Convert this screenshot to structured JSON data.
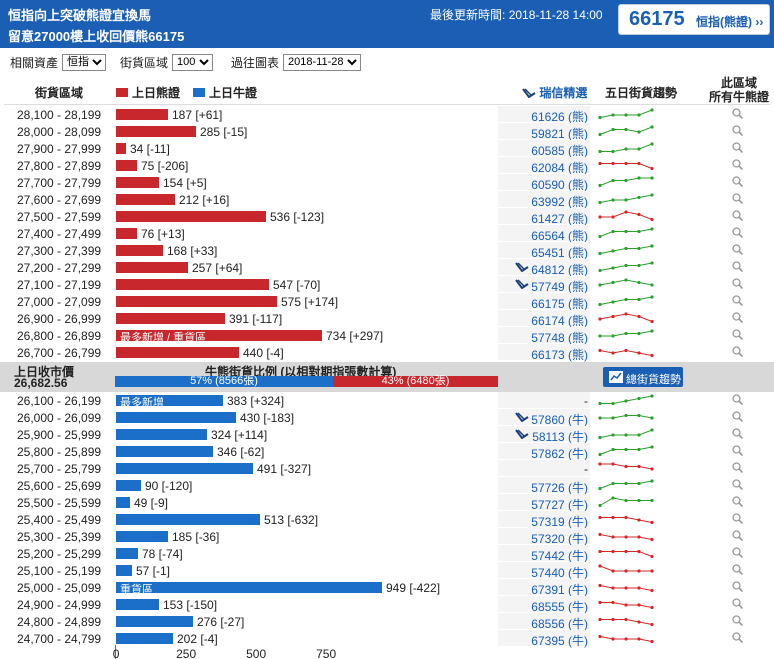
{
  "header": {
    "title_line1": "恒指向上突破熊證宜換馬",
    "title_line2": "留意27000樓上收回價熊66175",
    "updated_label": "最後更新時間:",
    "updated_time": "2018-11-28 14:00",
    "index_value": "66175",
    "index_name": "恒指(熊證) ››"
  },
  "controls": {
    "asset_label": "相關資產",
    "asset_value": "恒指",
    "range_label": "街貨區域",
    "range_value": "100",
    "date_label": "過往圖表",
    "date_value": "2018-11-28"
  },
  "columns": {
    "zone": "街貨區域",
    "bear_legend": "上日熊證",
    "bull_legend": "上日牛證",
    "ubs_pick": "瑞信精選",
    "trend": "五日街貨趨勢",
    "all_line1": "此區域",
    "all_line2": "所有牛熊證"
  },
  "colors": {
    "bear": "#c8282d",
    "bull": "#1b6fc9",
    "header_bg": "#1b5fb4",
    "trend_up": "#2ca02c",
    "trend_down": "#d62728"
  },
  "bear_rows": [
    {
      "range": "28,100 - 28,199",
      "value": 187,
      "label": "187 [+61]",
      "code": "61626 (熊)",
      "ubs": false,
      "trend": [
        1,
        2,
        2,
        2,
        4
      ],
      "inline": ""
    },
    {
      "range": "28,000 - 28,099",
      "value": 285,
      "label": "285 [-15]",
      "code": "59821 (熊)",
      "ubs": false,
      "trend": [
        1,
        3,
        3,
        2,
        4
      ],
      "inline": ""
    },
    {
      "range": "27,900 - 27,999",
      "value": 34,
      "label": "34 [-11]",
      "code": "60585 (熊)",
      "ubs": false,
      "trend": [
        1,
        1,
        2,
        2,
        4
      ],
      "inline": ""
    },
    {
      "range": "27,800 - 27,899",
      "value": 75,
      "label": "75 [-206]",
      "code": "62084 (熊)",
      "ubs": false,
      "trend": [
        3,
        3,
        3,
        3,
        1
      ],
      "inline": ""
    },
    {
      "range": "27,700 - 27,799",
      "value": 154,
      "label": "154 [+5]",
      "code": "60590 (熊)",
      "ubs": false,
      "trend": [
        1,
        3,
        3,
        4,
        4
      ],
      "inline": ""
    },
    {
      "range": "27,600 - 27,699",
      "value": 212,
      "label": "212 [+16]",
      "code": "63992 (熊)",
      "ubs": false,
      "trend": [
        1,
        2,
        2,
        3,
        4
      ],
      "inline": ""
    },
    {
      "range": "27,500 - 27,599",
      "value": 536,
      "label": "536 [-123]",
      "code": "61427 (熊)",
      "ubs": false,
      "trend": [
        2,
        2,
        4,
        3,
        1
      ],
      "inline": ""
    },
    {
      "range": "27,400 - 27,499",
      "value": 76,
      "label": "76 [+13]",
      "code": "66564 (熊)",
      "ubs": false,
      "trend": [
        1,
        3,
        3,
        3,
        4
      ],
      "inline": ""
    },
    {
      "range": "27,300 - 27,399",
      "value": 168,
      "label": "168 [+33]",
      "code": "65451 (熊)",
      "ubs": false,
      "trend": [
        1,
        2,
        3,
        3,
        4
      ],
      "inline": ""
    },
    {
      "range": "27,200 - 27,299",
      "value": 257,
      "label": "257 [+64]",
      "code": "64812 (熊)",
      "ubs": true,
      "trend": [
        1,
        2,
        3,
        3,
        4
      ],
      "inline": ""
    },
    {
      "range": "27,100 - 27,199",
      "value": 547,
      "label": "547 [-70]",
      "code": "57749 (熊)",
      "ubs": true,
      "trend": [
        2,
        3,
        4,
        3,
        2
      ],
      "inline": ""
    },
    {
      "range": "27,000 - 27,099",
      "value": 575,
      "label": "575 [+174]",
      "code": "66175 (熊)",
      "ubs": false,
      "trend": [
        1,
        2,
        3,
        3,
        4
      ],
      "inline": ""
    },
    {
      "range": "26,900 - 26,999",
      "value": 391,
      "label": "391 [-117]",
      "code": "66174 (熊)",
      "ubs": false,
      "trend": [
        2,
        3,
        4,
        3,
        1
      ],
      "inline": ""
    },
    {
      "range": "26,800 - 26,899",
      "value": 734,
      "label": "734 [+297]",
      "code": "57748 (熊)",
      "ubs": false,
      "trend": [
        2,
        2,
        3,
        3,
        4
      ],
      "inline": "最多新增 / 重貨區"
    },
    {
      "range": "26,700 - 26,799",
      "value": 440,
      "label": "440 [-4]",
      "code": "66173 (熊)",
      "ubs": false,
      "trend": [
        3,
        2,
        3,
        2,
        1
      ],
      "inline": ""
    }
  ],
  "middle": {
    "prev_close_label": "上日收市價",
    "prev_close_value": "26,682.56",
    "ratio_title": "牛熊街貨比例 (以相對期指張數計算)",
    "bull_ratio_text": "57% (8566張)",
    "bear_ratio_text": "43% (6480張)",
    "bull_ratio": 0.57,
    "bear_ratio": 0.43,
    "button_label": "總街貨趨勢"
  },
  "bull_rows": [
    {
      "range": "26,100 - 26,199",
      "value": 383,
      "label": "383 [+324]",
      "code": "-",
      "ubs": false,
      "trend": [
        1,
        1,
        2,
        3,
        4
      ],
      "inline": "最多新增"
    },
    {
      "range": "26,000 - 26,099",
      "value": 430,
      "label": "430 [-183]",
      "code": "57860 (牛)",
      "ubs": true,
      "trend": [
        2,
        2,
        3,
        3,
        2
      ],
      "inline": ""
    },
    {
      "range": "25,900 - 25,999",
      "value": 324,
      "label": "324 [+114]",
      "code": "58113 (牛)",
      "ubs": true,
      "trend": [
        1,
        2,
        2,
        2,
        4
      ],
      "inline": ""
    },
    {
      "range": "25,800 - 25,899",
      "value": 346,
      "label": "346 [-62]",
      "code": "57862 (牛)",
      "ubs": false,
      "trend": [
        1,
        3,
        3,
        3,
        4
      ],
      "inline": ""
    },
    {
      "range": "25,700 - 25,799",
      "value": 491,
      "label": "491 [-327]",
      "code": "-",
      "ubs": false,
      "trend": [
        4,
        4,
        3,
        3,
        2
      ],
      "inline": ""
    },
    {
      "range": "25,600 - 25,699",
      "value": 90,
      "label": "90 [-120]",
      "code": "57726 (牛)",
      "ubs": false,
      "trend": [
        1,
        3,
        3,
        3,
        4
      ],
      "inline": ""
    },
    {
      "range": "25,500 - 25,599",
      "value": 49,
      "label": "49 [-9]",
      "code": "57727 (牛)",
      "ubs": false,
      "trend": [
        1,
        4,
        3,
        3,
        3
      ],
      "inline": ""
    },
    {
      "range": "25,400 - 25,499",
      "value": 513,
      "label": "513 [-632]",
      "code": "57319 (牛)",
      "ubs": false,
      "trend": [
        3,
        3,
        3,
        2,
        1
      ],
      "inline": ""
    },
    {
      "range": "25,300 - 25,399",
      "value": 185,
      "label": "185 [-36]",
      "code": "57320 (牛)",
      "ubs": false,
      "trend": [
        3,
        2,
        2,
        2,
        1
      ],
      "inline": ""
    },
    {
      "range": "25,200 - 25,299",
      "value": 78,
      "label": "78 [-74]",
      "code": "57442 (牛)",
      "ubs": false,
      "trend": [
        3,
        3,
        3,
        3,
        1
      ],
      "inline": ""
    },
    {
      "range": "25,100 - 25,199",
      "value": 57,
      "label": "57 [-1]",
      "code": "57440 (牛)",
      "ubs": false,
      "trend": [
        4,
        2,
        2,
        2,
        2
      ],
      "inline": ""
    },
    {
      "range": "25,000 - 25,099",
      "value": 949,
      "label": "949 [-422]",
      "code": "67391 (牛)",
      "ubs": false,
      "trend": [
        3,
        2,
        2,
        2,
        1
      ],
      "inline": "重貨區"
    },
    {
      "range": "24,900 - 24,999",
      "value": 153,
      "label": "153 [-150]",
      "code": "68555 (牛)",
      "ubs": false,
      "trend": [
        3,
        3,
        2,
        2,
        1
      ],
      "inline": ""
    },
    {
      "range": "24,800 - 24,899",
      "value": 276,
      "label": "276 [-27]",
      "code": "68556 (牛)",
      "ubs": false,
      "trend": [
        3,
        3,
        3,
        2,
        1
      ],
      "inline": ""
    },
    {
      "range": "24,700 - 24,799",
      "value": 202,
      "label": "202 [-4]",
      "code": "67395 (牛)",
      "ubs": false,
      "trend": [
        3,
        2,
        2,
        2,
        1
      ],
      "inline": ""
    }
  ],
  "axis": {
    "ticks": [
      "0",
      "250",
      "500",
      "750"
    ],
    "max": 1250
  }
}
